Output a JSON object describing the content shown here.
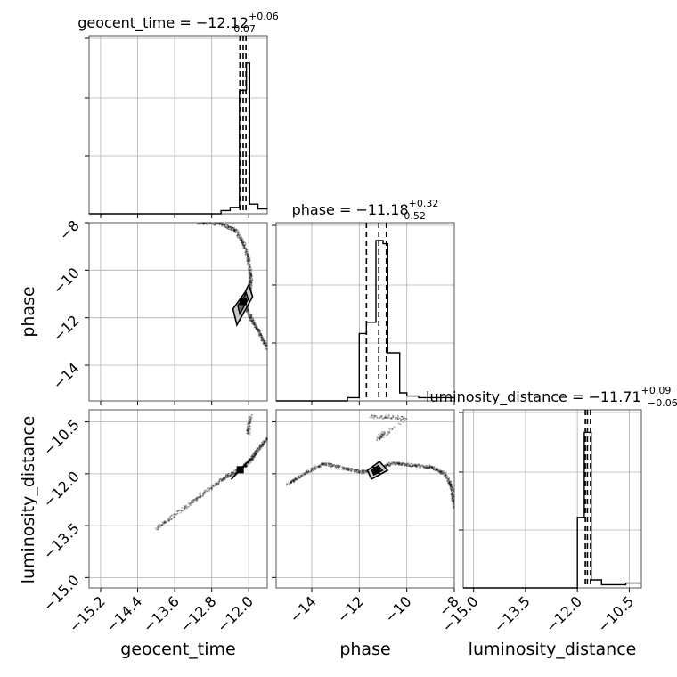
{
  "chart_data": {
    "type": "corner",
    "parameters": [
      "geocent_time",
      "phase",
      "luminosity_distance"
    ],
    "titles": [
      {
        "param": "geocent_time",
        "prefix": "geocent_time = ",
        "median": "−12.12",
        "plus": "+0.06",
        "minus": "−0.07"
      },
      {
        "param": "phase",
        "prefix": "phase = ",
        "median": "−11.18",
        "plus": "+0.32",
        "minus": "−0.52"
      },
      {
        "param": "luminosity_distance",
        "prefix": "luminosity_distance = ",
        "median": "−11.71",
        "plus": "+0.09",
        "minus": "−0.06"
      }
    ],
    "axis_labels": {
      "x": [
        "geocent_time",
        "phase",
        "luminosity_distance"
      ],
      "y": [
        "",
        "phase",
        "luminosity_distance"
      ]
    },
    "ranges": {
      "geocent_time": [
        -15.45,
        -11.6
      ],
      "phase": [
        -15.5,
        -8.0
      ],
      "luminosity_distance": [
        -15.3,
        -10.15
      ]
    },
    "ticks": {
      "geocent_time": {
        "values": [
          -15.2,
          -14.4,
          -13.6,
          -12.8,
          -12.0
        ],
        "labels": [
          "−15.2",
          "−14.4",
          "−13.6",
          "−12.8",
          "−12.0"
        ]
      },
      "phase": {
        "values": [
          -14,
          -12,
          -10,
          -8
        ],
        "labels": [
          "−14",
          "−12",
          "−10",
          "−8"
        ]
      },
      "luminosity_distance": {
        "values": [
          -15.0,
          -13.5,
          -12.0,
          -10.5
        ],
        "labels": [
          "−15.0",
          "−13.5",
          "−12.0",
          "−10.5"
        ]
      }
    },
    "quantile_lines": {
      "geocent_time": [
        -12.19,
        -12.12,
        -12.06
      ],
      "phase": [
        -11.7,
        -11.18,
        -10.86
      ],
      "luminosity_distance": [
        -11.77,
        -11.71,
        -11.62
      ]
    },
    "histograms": {
      "geocent_time": {
        "edges": [
          -15.45,
          -12.6,
          -12.4,
          -12.2,
          -12.05,
          -11.98,
          -11.8,
          -11.6
        ],
        "values": [
          0,
          0.02,
          0.04,
          0.77,
          0.94,
          0.06,
          0.03
        ]
      },
      "phase": {
        "edges": [
          -15.5,
          -12.5,
          -12.0,
          -11.7,
          -11.3,
          -11.0,
          -10.8,
          -10.3,
          -10.0,
          -9.5,
          -8.0
        ],
        "values": [
          0,
          0.02,
          0.42,
          0.49,
          1.0,
          0.98,
          0.3,
          0.05,
          0.03,
          0.02
        ]
      },
      "luminosity_distance": {
        "edges": [
          -15.3,
          -12.0,
          -11.8,
          -11.6,
          -11.3,
          -10.6,
          -10.15
        ],
        "values": [
          0,
          0.44,
          0.97,
          0.05,
          0.02,
          0.03
        ]
      }
    },
    "scatter": {
      "phase_vs_geocent_time": {
        "curve": [
          [
            -13.1,
            -8.0
          ],
          [
            -12.6,
            -8.05
          ],
          [
            -12.3,
            -8.3
          ],
          [
            -12.1,
            -8.9
          ],
          [
            -12.0,
            -9.6
          ],
          [
            -11.95,
            -10.4
          ],
          [
            -11.98,
            -11.0
          ],
          [
            -12.05,
            -11.6
          ],
          [
            -11.9,
            -12.2
          ],
          [
            -11.75,
            -12.7
          ],
          [
            -11.6,
            -13.3
          ]
        ],
        "core": [
          [
            -12.1,
            -11.1
          ],
          [
            -12.05,
            -10.9
          ],
          [
            -12.25,
            -11.5
          ],
          [
            -12.2,
            -11.9
          ],
          [
            -12.0,
            -11.2
          ]
        ]
      },
      "luminosity_distance_vs_geocent_time": {
        "curve": [
          [
            -14.0,
            -13.6
          ],
          [
            -13.4,
            -13.0
          ],
          [
            -12.9,
            -12.5
          ],
          [
            -12.5,
            -12.1
          ],
          [
            -12.15,
            -11.85
          ],
          [
            -11.95,
            -11.6
          ],
          [
            -11.8,
            -11.3
          ],
          [
            -11.6,
            -11.0
          ]
        ],
        "branch": [
          [
            -12.0,
            -10.9
          ],
          [
            -12.0,
            -10.6
          ],
          [
            -11.95,
            -10.3
          ]
        ],
        "core": [
          [
            -12.05,
            -11.7
          ],
          [
            -12.2,
            -11.9
          ],
          [
            -12.3,
            -12.05
          ]
        ]
      },
      "luminosity_distance_vs_phase": {
        "curve": [
          [
            -15.0,
            -12.3
          ],
          [
            -14.3,
            -12.0
          ],
          [
            -13.5,
            -11.7
          ],
          [
            -12.6,
            -11.85
          ],
          [
            -11.9,
            -11.95
          ],
          [
            -11.2,
            -11.85
          ],
          [
            -10.6,
            -11.7
          ],
          [
            -9.8,
            -11.75
          ],
          [
            -9.0,
            -11.8
          ],
          [
            -8.4,
            -12.0
          ],
          [
            -8.1,
            -12.4
          ],
          [
            -8.0,
            -13.0
          ]
        ],
        "branch": [
          [
            -11.5,
            -10.35
          ],
          [
            -10.8,
            -10.35
          ],
          [
            -10.0,
            -10.4
          ],
          [
            -11.2,
            -11.0
          ],
          [
            -11.0,
            -10.8
          ]
        ],
        "core": [
          [
            -11.2,
            -11.75
          ],
          [
            -11.5,
            -11.9
          ],
          [
            -11.0,
            -11.9
          ],
          [
            -11.4,
            -12.05
          ]
        ]
      }
    }
  }
}
